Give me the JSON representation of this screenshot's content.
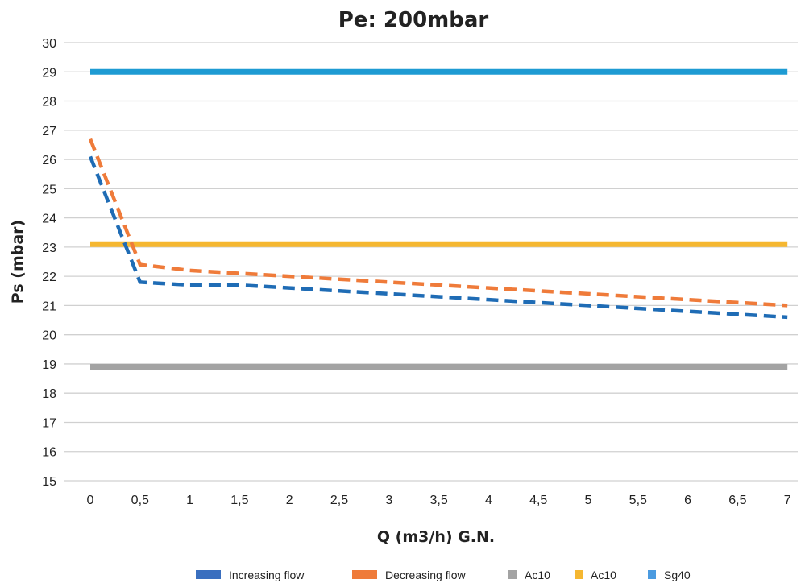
{
  "chart_data": {
    "type": "line",
    "title": "Pe: 200mbar",
    "xlabel": "Q (m3/h) G.N.",
    "ylabel": "Ps (mbar)",
    "ylim": [
      15,
      30
    ],
    "grid": true,
    "legend_position": "bottom",
    "x": [
      "0",
      "0,5",
      "1",
      "1,5",
      "2",
      "2,5",
      "3",
      "3,5",
      "4",
      "4,5",
      "5",
      "5,5",
      "6",
      "6,5",
      "7"
    ],
    "y_ticks": [
      "15",
      "16",
      "17",
      "18",
      "19",
      "20",
      "21",
      "22",
      "23",
      "24",
      "25",
      "26",
      "27",
      "28",
      "29",
      "30"
    ],
    "series": [
      {
        "name": "Increasing flow",
        "color": "#1f6cb5",
        "legend_color": "#3a6fbf",
        "style": "dashed",
        "values": [
          26.1,
          21.8,
          21.7,
          21.7,
          21.6,
          21.5,
          21.4,
          21.3,
          21.2,
          21.1,
          21.0,
          20.9,
          20.8,
          20.7,
          20.6
        ]
      },
      {
        "name": "Decreasing  flow",
        "color": "#ef7b3a",
        "legend_color": "#ef7b3a",
        "style": "dashed",
        "values": [
          26.7,
          22.4,
          22.2,
          22.1,
          22.0,
          21.9,
          21.8,
          21.7,
          21.6,
          21.5,
          21.4,
          21.3,
          21.2,
          21.1,
          21.0
        ]
      },
      {
        "name": "Ac10",
        "color": "#a3a3a3",
        "legend_color": "#a3a3a3",
        "style": "solid",
        "values": [
          18.9,
          18.9,
          18.9,
          18.9,
          18.9,
          18.9,
          18.9,
          18.9,
          18.9,
          18.9,
          18.9,
          18.9,
          18.9,
          18.9,
          18.9
        ]
      },
      {
        "name": "Ac10",
        "color": "#f5b731",
        "legend_color": "#f5b731",
        "style": "solid",
        "values": [
          23.1,
          23.1,
          23.1,
          23.1,
          23.1,
          23.1,
          23.1,
          23.1,
          23.1,
          23.1,
          23.1,
          23.1,
          23.1,
          23.1,
          23.1
        ]
      },
      {
        "name": "Sg40",
        "color": "#1e9bd3",
        "legend_color": "#4b9be0",
        "style": "solid",
        "values": [
          29.0,
          29.0,
          29.0,
          29.0,
          29.0,
          29.0,
          29.0,
          29.0,
          29.0,
          29.0,
          29.0,
          29.0,
          29.0,
          29.0,
          29.0
        ]
      }
    ]
  }
}
